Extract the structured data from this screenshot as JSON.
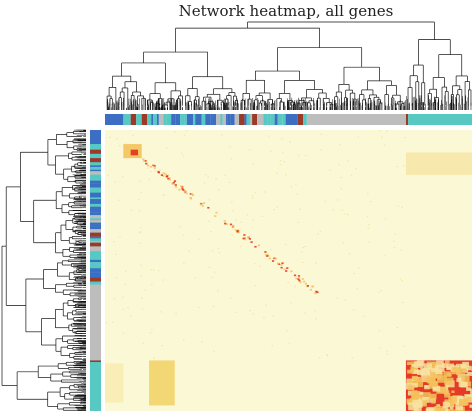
{
  "figure": {
    "title": "Network heatmap, all genes"
  },
  "colors": {
    "background": "#fbf8d6",
    "module_turquoise": "#57c8c2",
    "module_blue": "#3c6ec4",
    "module_brown": "#9a3b2a",
    "module_grey": "#bdbdbd",
    "heat_low": "#fbf8d6",
    "heat_mid": "#f3c25a",
    "heat_high": "#e4301c",
    "dendrogram": "#111111"
  }
}
